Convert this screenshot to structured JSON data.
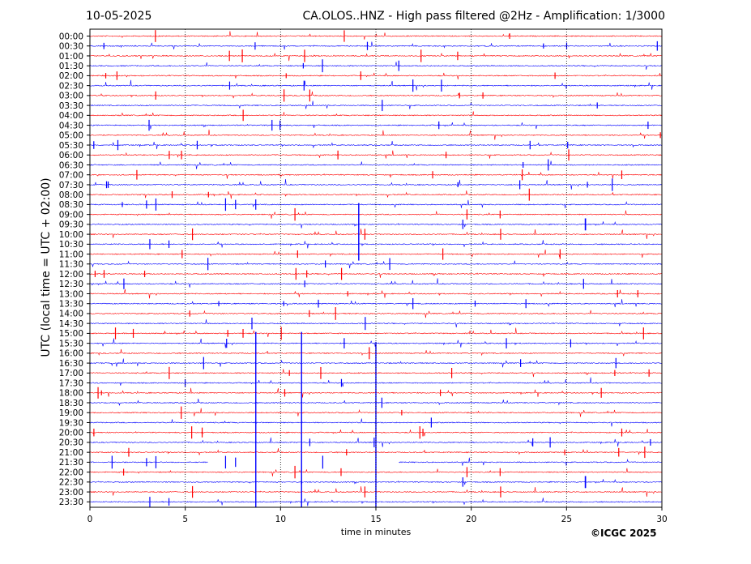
{
  "header": {
    "date": "10-05-2025",
    "title": "CA.OLOS..HNZ - High pass filtered @2Hz - Amplification: 1/3000"
  },
  "footer": {
    "copyright": "©ICGC 2025"
  },
  "chart_data": {
    "type": "line",
    "title": "CA.OLOS..HNZ - High pass filtered @2Hz - Amplification: 1/3000",
    "date": "10-05-2025",
    "xlabel": "time in minutes",
    "ylabel": "UTC (local time = UTC + 02:00)",
    "xlim": [
      0,
      30
    ],
    "x_ticks": [
      0,
      5,
      10,
      15,
      20,
      25,
      30
    ],
    "vertical_grid_dotted_at": [
      5,
      10,
      15,
      20,
      25
    ],
    "row_labels": [
      "00:00",
      "00:30",
      "01:00",
      "01:30",
      "02:00",
      "02:30",
      "03:00",
      "03:30",
      "04:00",
      "04:30",
      "05:00",
      "05:30",
      "06:00",
      "06:30",
      "07:00",
      "07:30",
      "08:00",
      "08:30",
      "09:00",
      "09:30",
      "10:00",
      "10:30",
      "11:00",
      "11:30",
      "12:00",
      "12:30",
      "13:00",
      "13:30",
      "14:00",
      "14:30",
      "15:00",
      "15:30",
      "16:00",
      "16:30",
      "17:00",
      "17:30",
      "18:00",
      "18:30",
      "19:00",
      "19:30",
      "20:00",
      "20:30",
      "21:00",
      "21:30",
      "22:00",
      "22:30",
      "23:00",
      "23:30"
    ],
    "series_colors": [
      "#ff0000",
      "#0000ff"
    ],
    "color_alternation": "red on even rows, blue on odd rows",
    "legend": "none",
    "notable_events": [
      {
        "row": "09:00",
        "minute": 14.1,
        "note": "long vertical excursion to 11:00"
      },
      {
        "row": "15:30",
        "minute": 8.7,
        "note": "long vertical trace to bottom"
      },
      {
        "row": "15:30",
        "minute": 11.1,
        "note": "long vertical trace to bottom"
      },
      {
        "row": "16:00",
        "minute": 15.0,
        "note": "long vertical trace to bottom"
      },
      {
        "row": "21:30",
        "gap_minutes": [
          6.2,
          16.2
        ],
        "note": "data gap"
      }
    ]
  }
}
